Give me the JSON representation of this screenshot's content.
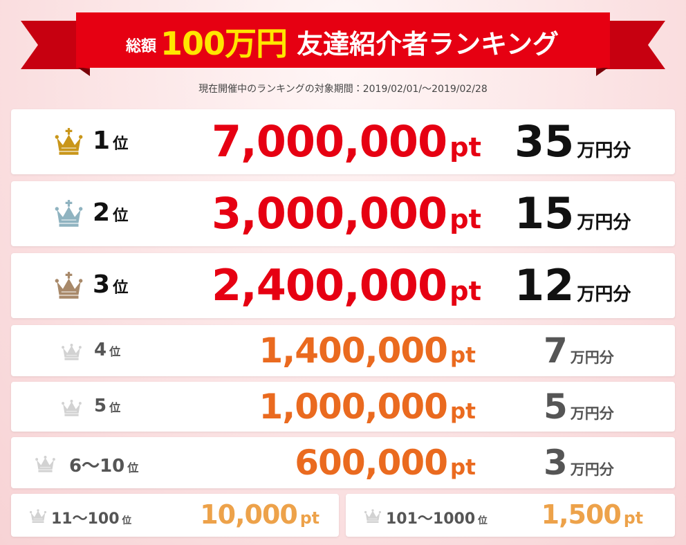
{
  "header": {
    "prefix": "総額",
    "amount": "100万円",
    "title": "友達紹介者ランキング",
    "period": "現在開催中のランキングの対象期間：2019/02/01/～2019/02/28"
  },
  "units": {
    "rank": "位",
    "points": "pt",
    "prize": "万円分"
  },
  "rows": [
    {
      "rank": "1",
      "points": "7,000,000",
      "prize": "35"
    },
    {
      "rank": "2",
      "points": "3,000,000",
      "prize": "15"
    },
    {
      "rank": "3",
      "points": "2,400,000",
      "prize": "12"
    },
    {
      "rank": "4",
      "points": "1,400,000",
      "prize": "7"
    },
    {
      "rank": "5",
      "points": "1,000,000",
      "prize": "5"
    },
    {
      "rank": "6～10",
      "points": "600,000",
      "prize": "3"
    },
    {
      "rank": "11～100",
      "points": "10,000"
    },
    {
      "rank": "101～1000",
      "points": "1,500"
    }
  ]
}
